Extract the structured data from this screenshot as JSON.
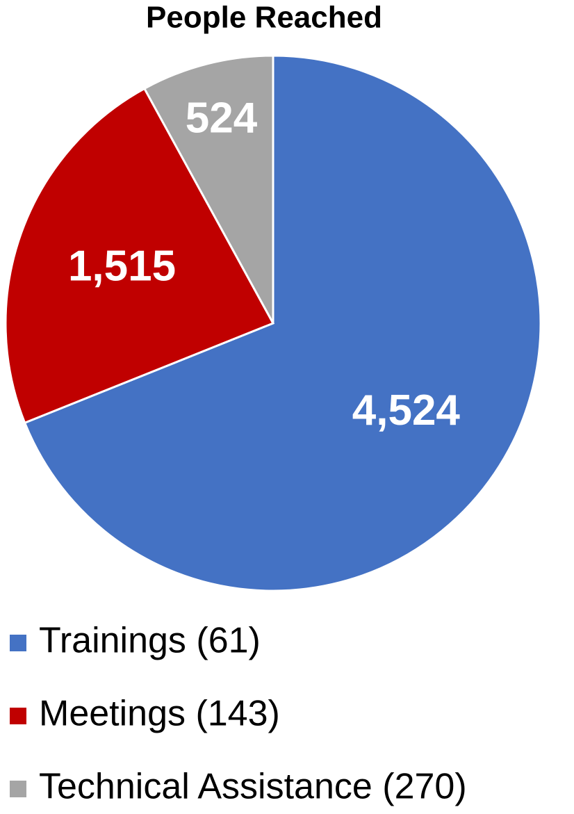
{
  "chart_data": {
    "type": "pie",
    "title": "People Reached",
    "categories": [
      "Trainings (61)",
      "Meetings (143)",
      "Technical Assistance (270)"
    ],
    "values": [
      4524,
      1515,
      524
    ],
    "value_labels": [
      "4,524",
      "1,515",
      "524"
    ],
    "colors": [
      "#4472c4",
      "#c00000",
      "#a5a5a5"
    ],
    "legend": "bottom"
  }
}
